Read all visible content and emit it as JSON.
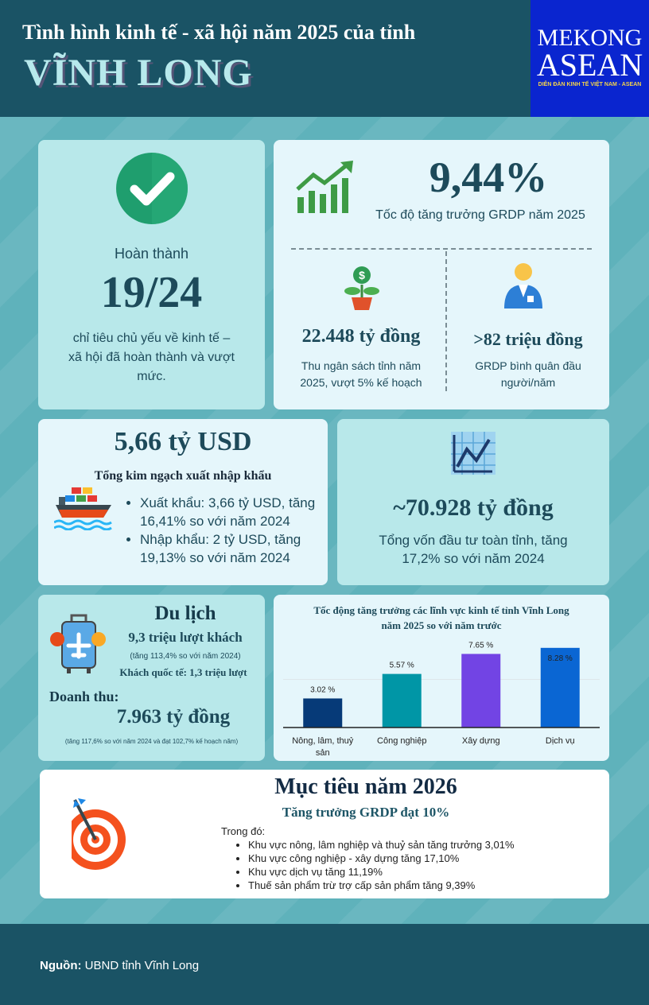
{
  "header": {
    "subtitle": "Tình hình kinh tế - xã hội năm 2025 của tỉnh",
    "title": "VĨNH LONG",
    "logo": {
      "line1": "MEKONG",
      "line2": "ASEAN",
      "tagline": "DIỄN ĐÀN KINH TẾ VIỆT NAM - ASEAN",
      "color": "#0a25cf"
    }
  },
  "completion": {
    "label": "Hoàn thành",
    "value": "19/24",
    "description": "chỉ tiêu chủ yếu về kinh tế – xã hội đã hoàn thành và vượt mức.",
    "icon": "check-circle-icon"
  },
  "grdp": {
    "value": "9,44%",
    "label": "Tốc độ tăng trưởng GRDP năm 2025",
    "budget": {
      "value": "22.448 tỷ đồng",
      "label": "Thu ngân sách tỉnh năm 2025, vượt 5% kế hoạch"
    },
    "per_capita": {
      "value": ">82 triệu đồng",
      "label": "GRDP bình quân đầu người/năm"
    }
  },
  "trade": {
    "value": "5,66 tỷ USD",
    "label": "Tổng kim ngạch xuất nhập khẩu",
    "items": [
      "Xuất khẩu: 3,66 tỷ USD, tăng 16,41% so với năm 2024",
      "Nhập khẩu: 2 tỷ USD, tăng 19,13% so với năm 2024"
    ]
  },
  "investment": {
    "value": "~70.928 tỷ đồng",
    "label": "Tổng vốn đầu tư toàn tỉnh, tăng 17,2% so với năm 2024"
  },
  "tourism": {
    "title": "Du lịch",
    "visitors": "9,3 triệu lượt khách",
    "visitors_note": "(tăng 113,4% so với năm 2024)",
    "international": "Khách quốc tế: 1,3 triệu lượt",
    "revenue_label": "Doanh thu:",
    "revenue": "7.963 tỷ đồng",
    "revenue_note": "(tăng 117,6% so với năm 2024 và đạt 102,7% kế hoạch năm)"
  },
  "chart_data": {
    "type": "bar",
    "title": "Tốc động tăng trưởng các lĩnh vực kinh tế tỉnh Vĩnh Long năm 2025 so với năm trước",
    "categories": [
      "Nông, lâm, thuỷ sản",
      "Công nghiệp",
      "Xây dựng",
      "Dịch vụ"
    ],
    "values": [
      3.02,
      5.57,
      7.65,
      8.28
    ],
    "labels": [
      "3.02 %",
      "5.57 %",
      "7.65 %",
      "8.28 %"
    ],
    "colors": [
      "#063a78",
      "#0096a6",
      "#7244e4",
      "#0a66d3"
    ],
    "ylim": [
      0,
      10
    ],
    "grid": true
  },
  "target": {
    "title": "Mục tiêu năm 2026",
    "subtitle": "Tăng trưởng GRDP đạt 10%",
    "intro": "Trong đó:",
    "items": [
      "Khu vực nông, lâm nghiệp và thuỷ sản tăng trưởng 3,01%",
      "Khu vực công nghiệp - xây dựng tăng 17,10%",
      "Khu vực dịch vụ tăng 11,19%",
      "Thuế sản phẩm trừ trợ cấp sản phẩm tăng 9,39%"
    ]
  },
  "footer": {
    "source_label": "Nguồn:",
    "source": "UBND tỉnh Vĩnh Long"
  }
}
